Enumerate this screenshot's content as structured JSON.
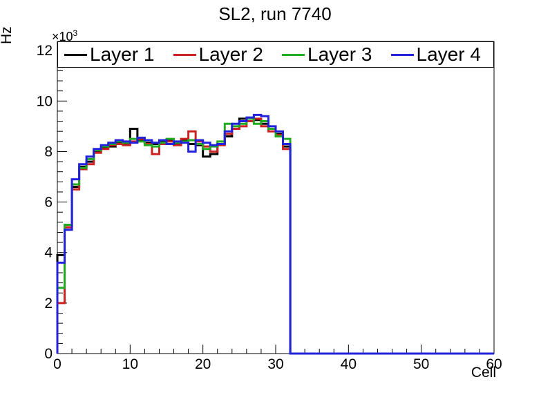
{
  "title": "SL2, run 7740",
  "legend": {
    "entries": [
      {
        "label": "Layer 1",
        "color": "#000000"
      },
      {
        "label": "Layer 2",
        "color": "#cc2222"
      },
      {
        "label": "Layer 3",
        "color": "#22aa22"
      },
      {
        "label": "Layer 4",
        "color": "#2222dd"
      }
    ]
  },
  "y_axis": {
    "title": "Hz",
    "power_base": "×10",
    "power_exp": "3",
    "tick_labels": [
      "0",
      "2",
      "4",
      "6",
      "8",
      "10",
      "12"
    ]
  },
  "x_axis": {
    "title": "Cell",
    "tick_labels": [
      "0",
      "10",
      "20",
      "30",
      "40",
      "50",
      "60"
    ]
  },
  "chart_data": {
    "type": "step-histogram",
    "title": "SL2, run 7740",
    "xlabel": "Cell",
    "ylabel": "Hz",
    "xlim": [
      0,
      60
    ],
    "ylim": [
      0,
      12360
    ],
    "x_major_ticks": [
      0,
      10,
      20,
      30,
      40,
      50,
      60
    ],
    "x_minor_step": 2,
    "y_major_ticks": [
      0,
      2000,
      4000,
      6000,
      8000,
      10000,
      12000
    ],
    "y_minor_step": 400,
    "bin_start": 0,
    "bin_width": 1,
    "zero_after_cell": 32,
    "grid": false,
    "legend_position": "top-span",
    "series": [
      {
        "name": "Layer 1",
        "color": "#000000",
        "values": [
          3900,
          5000,
          6600,
          7400,
          7600,
          8000,
          8150,
          8200,
          8350,
          8300,
          8900,
          8450,
          8350,
          8300,
          8400,
          8450,
          8300,
          8450,
          8300,
          8250,
          7800,
          7900,
          8300,
          8600,
          8900,
          9300,
          9200,
          9250,
          9100,
          8900,
          8700,
          8200
        ]
      },
      {
        "name": "Layer 2",
        "color": "#cc2222",
        "values": [
          2000,
          5000,
          6500,
          7300,
          7500,
          7950,
          8100,
          8250,
          8300,
          8250,
          8400,
          8500,
          8300,
          7900,
          8300,
          8400,
          8250,
          8500,
          8800,
          8400,
          8200,
          8000,
          8250,
          8700,
          8900,
          9000,
          9200,
          9300,
          9000,
          8800,
          8650,
          8100
        ]
      },
      {
        "name": "Layer 3",
        "color": "#22aa22",
        "values": [
          2600,
          5100,
          6700,
          7350,
          7700,
          8050,
          8200,
          8300,
          8400,
          8350,
          8500,
          8400,
          8250,
          8200,
          8350,
          8500,
          8350,
          8400,
          8450,
          8300,
          8100,
          8200,
          8400,
          9100,
          9000,
          9100,
          9300,
          9100,
          9200,
          8900,
          8600,
          8500
        ]
      },
      {
        "name": "Layer 4",
        "color": "#2222dd",
        "values": [
          3600,
          4900,
          6900,
          7500,
          7800,
          8100,
          8250,
          8350,
          8450,
          8400,
          8350,
          8550,
          8450,
          8350,
          8450,
          8300,
          8400,
          8350,
          8000,
          8450,
          8350,
          8250,
          8300,
          8800,
          9100,
          9200,
          9350,
          9450,
          9400,
          9000,
          8800,
          8300
        ]
      }
    ]
  }
}
